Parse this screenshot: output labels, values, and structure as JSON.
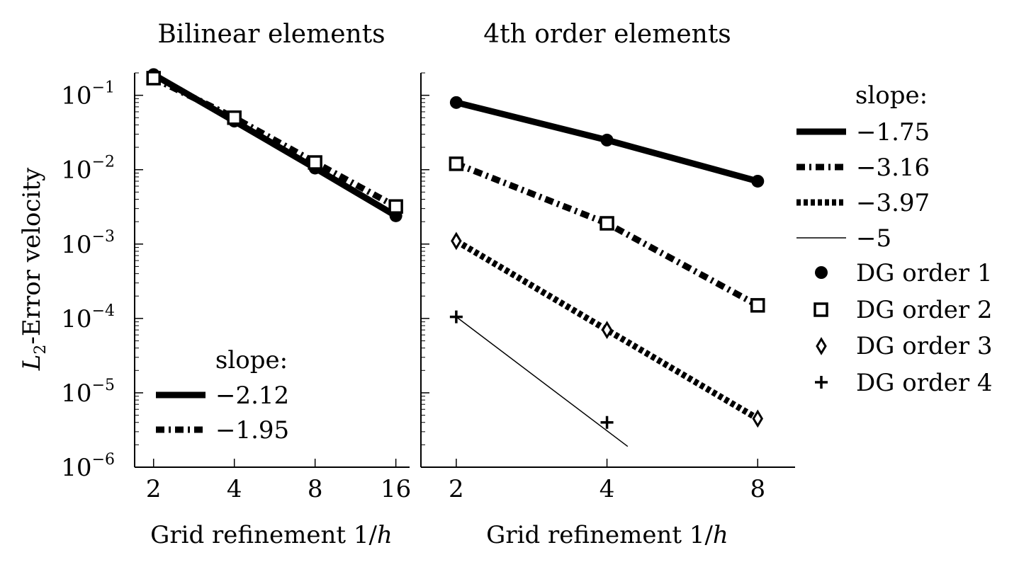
{
  "chart_data": [
    {
      "type": "line",
      "title": "Bilinear elements",
      "xlabel": "Grid refinement 1/h",
      "ylabel": "L2-Error velocity",
      "yscale": "log",
      "xscale": "log2",
      "ylim": [
        1e-06,
        0.2
      ],
      "xlim": [
        1.7,
        18
      ],
      "x_ticks": [
        2,
        4,
        8,
        16
      ],
      "x_tick_labels": [
        "2",
        "4",
        "8",
        "16"
      ],
      "y_tick_exponents": [
        "−1",
        "−2",
        "−3",
        "−4",
        "−5",
        "−6"
      ],
      "y_tick_values": [
        0.1,
        0.01,
        0.001,
        0.0001,
        1e-05,
        1e-06
      ],
      "grid": false,
      "series": [
        {
          "x": [
            2,
            4,
            8,
            16
          ],
          "values": [
            0.19,
            0.045,
            0.0105,
            0.0024
          ],
          "line": "solid-thick",
          "marker": "circle"
        },
        {
          "x": [
            2,
            4,
            8,
            16
          ],
          "values": [
            0.17,
            0.05,
            0.0125,
            0.0032
          ],
          "line": "dashdot-thick",
          "marker": "square"
        }
      ],
      "legend": {
        "placement": "bottom-left",
        "title": "slope:",
        "entries": [
          {
            "label": "−2.12",
            "line": "solid-thick"
          },
          {
            "label": "−1.95",
            "line": "dashdot-thick"
          }
        ]
      }
    },
    {
      "type": "line",
      "title": "4th order elements",
      "xlabel": "Grid refinement 1/h",
      "yscale": "log",
      "xscale": "log2",
      "ylim": [
        1e-06,
        0.2
      ],
      "xlim": [
        1.7,
        9.5
      ],
      "x_ticks": [
        2,
        4,
        8
      ],
      "x_tick_labels": [
        "2",
        "4",
        "8"
      ],
      "grid": false,
      "series": [
        {
          "name": "DG order 1",
          "x": [
            2,
            4,
            8
          ],
          "values": [
            0.08,
            0.025,
            0.007
          ],
          "line": "solid-thick",
          "marker": "circle"
        },
        {
          "name": "DG order 2",
          "x": [
            2,
            4,
            8
          ],
          "values": [
            0.012,
            0.0019,
            0.00015
          ],
          "line": "dashdot-thick",
          "marker": "square"
        },
        {
          "name": "DG order 3",
          "x": [
            2,
            4,
            8
          ],
          "values": [
            0.0011,
            7e-05,
            4.5e-06
          ],
          "line": "dotted-thick",
          "marker": "diamond"
        },
        {
          "name": "DG order 4",
          "x": [
            2,
            4
          ],
          "values": [
            0.000105,
            4e-06
          ],
          "line": "none",
          "marker": "plus"
        }
      ],
      "reference_line": {
        "slope": -5,
        "x": [
          2,
          4.4
        ],
        "values": [
          0.000105,
          1.9e-06
        ]
      },
      "legend": {
        "placement": "outside-right",
        "title": "slope:",
        "line_entries": [
          {
            "label": "−1.75",
            "line": "solid-thick"
          },
          {
            "label": "−3.16",
            "line": "dashdot-thick"
          },
          {
            "label": "−3.97",
            "line": "dotted-thick"
          },
          {
            "label": "−5",
            "line": "solid-thin"
          }
        ],
        "marker_entries": [
          {
            "label": "DG order 1",
            "marker": "circle"
          },
          {
            "label": "DG order 2",
            "marker": "square"
          },
          {
            "label": "DG order 3",
            "marker": "diamond"
          },
          {
            "label": "DG order 4",
            "marker": "plus"
          }
        ]
      }
    }
  ],
  "labels": {
    "left_title": "Bilinear elements",
    "right_title": "4th order elements",
    "xlabel_text": "Grid refinement 1/",
    "xlabel_var": "h",
    "ylabel_var": "L",
    "ylabel_sub": "2",
    "ylabel_rest": "-Error velocity",
    "tick_base": "10",
    "legend_title": "slope:"
  }
}
